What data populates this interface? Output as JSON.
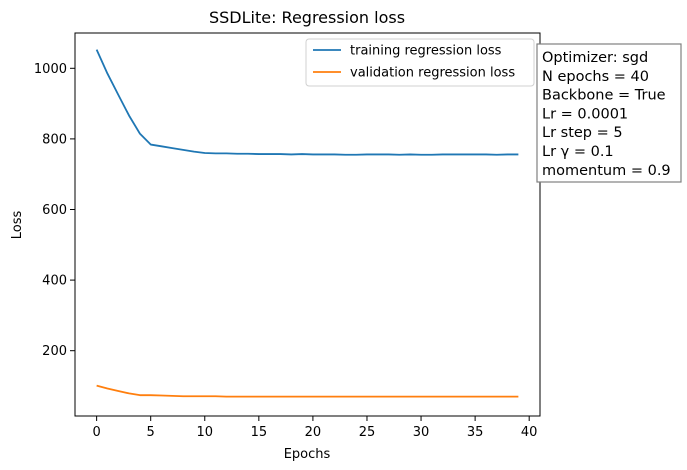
{
  "chart_data": {
    "type": "line",
    "title": "SSDLite: Regression loss",
    "xlabel": "Epochs",
    "ylabel": "Loss",
    "xlim": [
      -2,
      41
    ],
    "ylim": [
      15,
      1100
    ],
    "xticks": [
      0,
      5,
      10,
      15,
      20,
      25,
      30,
      35,
      40
    ],
    "yticks": [
      200,
      400,
      600,
      800,
      1000
    ],
    "grid": false,
    "legend_position": "top-right",
    "x": [
      0,
      1,
      2,
      3,
      4,
      5,
      6,
      7,
      8,
      9,
      10,
      11,
      12,
      13,
      14,
      15,
      16,
      17,
      18,
      19,
      20,
      21,
      22,
      23,
      24,
      25,
      26,
      27,
      28,
      29,
      30,
      31,
      32,
      33,
      34,
      35,
      36,
      37,
      38,
      39
    ],
    "series": [
      {
        "name": "training regression loss",
        "color": "#1f77b4",
        "values": [
          1053,
          985,
          925,
          866,
          815,
          784,
          779,
          774,
          769,
          764,
          760,
          759,
          759,
          758,
          758,
          757,
          757,
          757,
          756,
          757,
          756,
          756,
          756,
          755,
          755,
          756,
          756,
          756,
          755,
          756,
          755,
          755,
          756,
          756,
          756,
          756,
          756,
          755,
          756,
          756
        ]
      },
      {
        "name": "validation regression loss",
        "color": "#ff7f0e",
        "values": [
          101,
          93,
          86,
          79,
          74,
          74,
          73,
          72,
          71,
          71,
          71,
          71,
          70,
          70,
          70,
          70,
          70,
          70,
          70,
          70,
          70,
          70,
          70,
          70,
          70,
          70,
          70,
          70,
          70,
          70,
          70,
          70,
          70,
          70,
          70,
          70,
          70,
          70,
          70,
          70
        ]
      }
    ],
    "info_box": [
      "Optimizer: sgd",
      "N epochs = 40",
      "Backbone = True",
      "Lr = 0.0001",
      "Lr step = 5",
      "Lr γ = 0.1",
      "momentum = 0.9"
    ]
  }
}
